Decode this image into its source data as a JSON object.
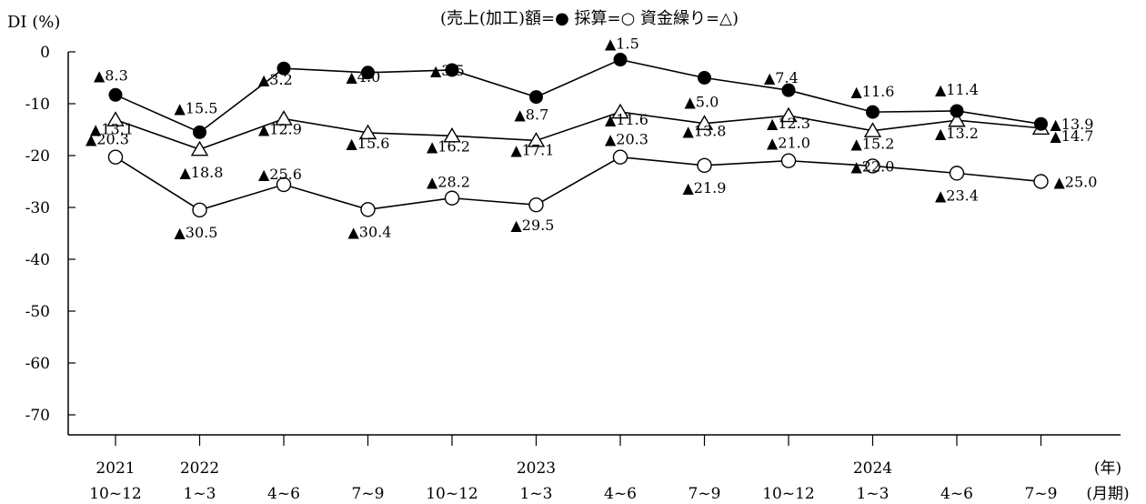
{
  "chart_data": {
    "type": "line",
    "y_axis_label": "DI (%)",
    "legend_text": "(売上(加工)額=● 採算=○ 資金繰り=△)",
    "ylim": [
      -70,
      0
    ],
    "y_ticks": [
      "0",
      "-10",
      "-20",
      "-30",
      "-40",
      "-50",
      "-60",
      "-70"
    ],
    "x_unit_year": "(年)",
    "x_unit_period": "(月期)",
    "x_categories": [
      {
        "year": "2021",
        "period": "10~12"
      },
      {
        "year": "2022",
        "period": "1~3"
      },
      {
        "year": "",
        "period": "4~6"
      },
      {
        "year": "",
        "period": "7~9"
      },
      {
        "year": "",
        "period": "10~12"
      },
      {
        "year": "2023",
        "period": "1~3"
      },
      {
        "year": "",
        "period": "4~6"
      },
      {
        "year": "",
        "period": "7~9"
      },
      {
        "year": "",
        "period": "10~12"
      },
      {
        "year": "2024",
        "period": "1~3"
      },
      {
        "year": "",
        "period": "4~6"
      },
      {
        "year": "",
        "period": "7~9"
      }
    ],
    "series": [
      {
        "name": "売上(加工)額",
        "marker": "filled-circle",
        "values": [
          -8.3,
          -15.5,
          -3.2,
          -4.0,
          -3.5,
          -8.7,
          -1.5,
          -5.0,
          -7.4,
          -11.6,
          -11.4,
          -13.9
        ],
        "labels": [
          "▲8.3",
          "▲15.5",
          "▲3.2",
          "▲4.0",
          "▲3.5",
          "▲8.7",
          "▲1.5",
          "▲5.0",
          "▲7.4",
          "▲11.6",
          "▲11.4",
          "▲13.9"
        ]
      },
      {
        "name": "採算",
        "marker": "open-circle",
        "values": [
          -20.3,
          -30.5,
          -25.6,
          -30.4,
          -28.2,
          -29.5,
          -20.3,
          -21.9,
          -21.0,
          -22.0,
          -23.4,
          -25.0
        ],
        "labels": [
          "▲20.3",
          "▲30.5",
          "▲25.6",
          "▲30.4",
          "▲28.2",
          "▲29.5",
          "▲20.3",
          "▲21.9",
          "▲21.0",
          "▲22.0",
          "▲23.4",
          "▲25.0"
        ]
      },
      {
        "name": "資金繰り",
        "marker": "open-triangle",
        "values": [
          -13.1,
          -18.8,
          -12.9,
          -15.6,
          -16.2,
          -17.1,
          -11.6,
          -13.8,
          -12.3,
          -15.2,
          -13.2,
          -14.7
        ],
        "labels": [
          "▲13.1",
          "▲18.8",
          "▲12.9",
          "▲15.6",
          "▲16.2",
          "▲17.1",
          "▲11.6",
          "▲13.8",
          "▲12.3",
          "▲15.2",
          "▲13.2",
          "▲14.7"
        ]
      }
    ],
    "grid": false
  }
}
